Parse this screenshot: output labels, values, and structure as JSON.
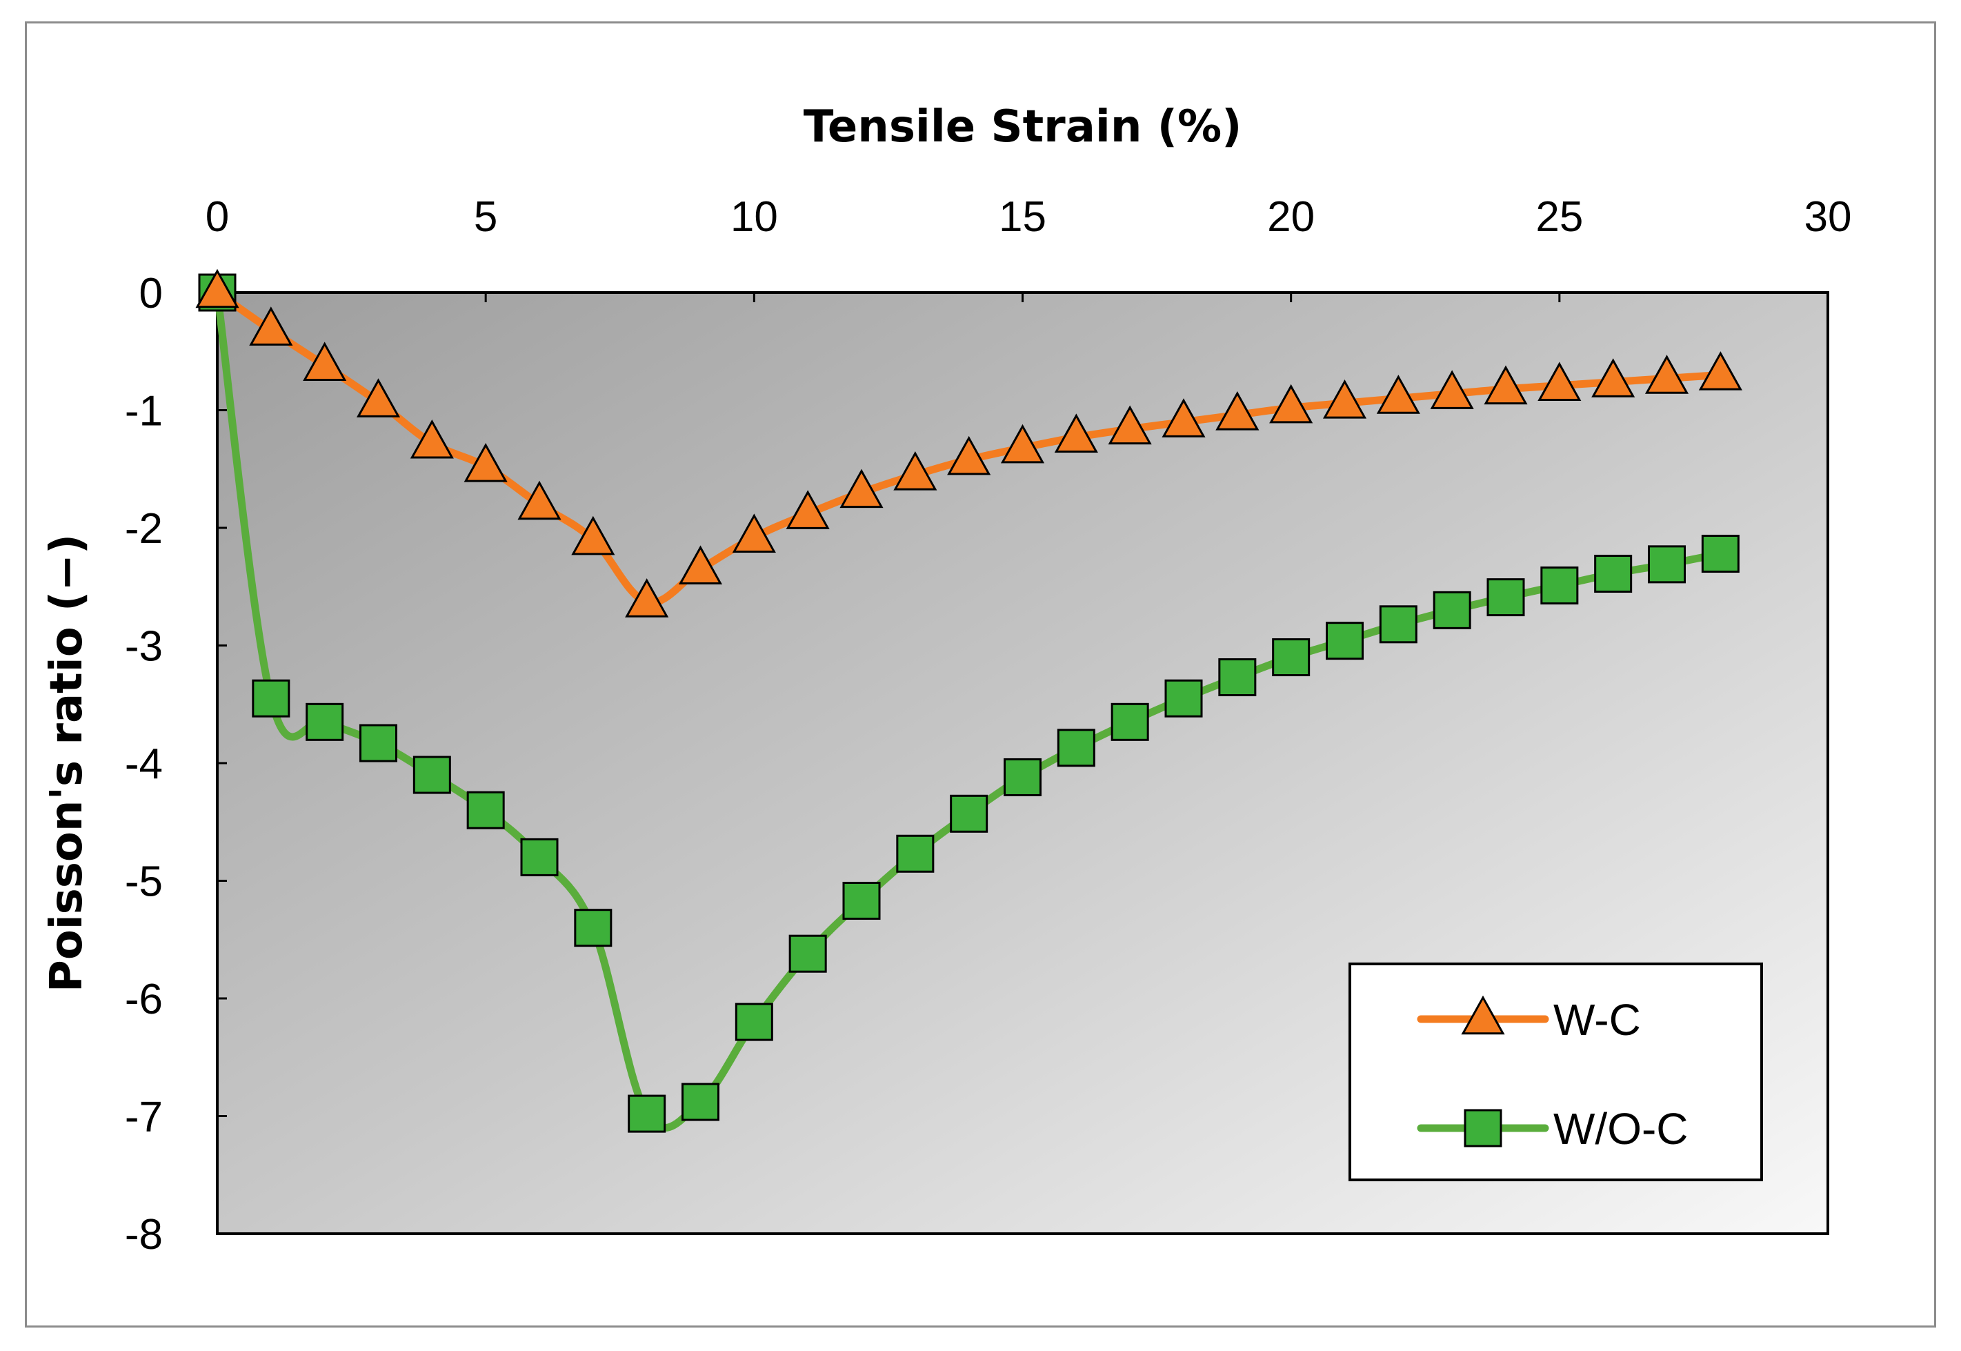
{
  "chart_data": {
    "type": "line",
    "xlabel": "Tensile Strain (%)",
    "ylabel": "Poisson's ratio (−)",
    "xlim": [
      0,
      30
    ],
    "ylim": [
      -8,
      0
    ],
    "x_ticks": [
      0,
      5,
      10,
      15,
      20,
      25,
      30
    ],
    "y_ticks": [
      0,
      -1,
      -2,
      -3,
      -4,
      -5,
      -6,
      -7,
      -8
    ],
    "x_axis_position": "top",
    "grid": false,
    "legend_position": "bottom-right",
    "x": [
      0,
      1,
      2,
      3,
      4,
      5,
      6,
      7,
      8,
      9,
      10,
      11,
      12,
      13,
      14,
      15,
      16,
      17,
      18,
      19,
      20,
      21,
      22,
      23,
      24,
      25,
      26,
      27,
      28
    ],
    "series": [
      {
        "name": "W-C",
        "marker": "triangle",
        "color": "#f47c20",
        "marker_color": "#f47c20",
        "values": [
          0,
          -0.32,
          -0.62,
          -0.93,
          -1.28,
          -1.48,
          -1.8,
          -2.1,
          -2.63,
          -2.35,
          -2.08,
          -1.88,
          -1.7,
          -1.55,
          -1.42,
          -1.32,
          -1.23,
          -1.16,
          -1.1,
          -1.04,
          -0.98,
          -0.94,
          -0.9,
          -0.86,
          -0.82,
          -0.79,
          -0.76,
          -0.73,
          -0.7
        ]
      },
      {
        "name": "W/O-C",
        "marker": "square",
        "color": "#5aad3c",
        "marker_color": "#3db03a",
        "values": [
          0,
          -3.45,
          -3.65,
          -3.83,
          -4.1,
          -4.4,
          -4.8,
          -5.4,
          -6.98,
          -6.88,
          -6.2,
          -5.62,
          -5.17,
          -4.77,
          -4.43,
          -4.12,
          -3.87,
          -3.65,
          -3.45,
          -3.27,
          -3.1,
          -2.96,
          -2.82,
          -2.7,
          -2.59,
          -2.49,
          -2.39,
          -2.31,
          -2.22
        ]
      }
    ]
  }
}
